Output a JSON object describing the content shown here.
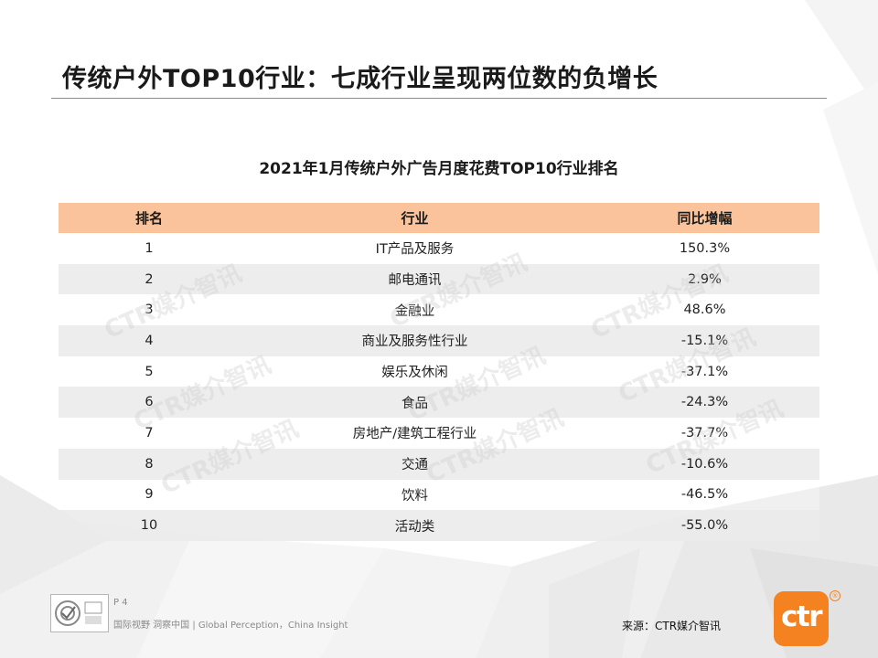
{
  "page_title": "传统户外TOP10行业：七成行业呈现两位数的负增长",
  "table_title": "2021年1月传统户外广告月度花费TOP10行业排名",
  "table": {
    "headers": [
      "排名",
      "行业",
      "同比增幅"
    ],
    "rows": [
      {
        "rank": "1",
        "industry": "IT产品及服务",
        "growth": "150.3%"
      },
      {
        "rank": "2",
        "industry": "邮电通讯",
        "growth": "2.9%"
      },
      {
        "rank": "3",
        "industry": "金融业",
        "growth": "48.6%"
      },
      {
        "rank": "4",
        "industry": "商业及服务性行业",
        "growth": "-15.1%"
      },
      {
        "rank": "5",
        "industry": "娱乐及休闲",
        "growth": "-37.1%"
      },
      {
        "rank": "6",
        "industry": "食品",
        "growth": "-24.3%"
      },
      {
        "rank": "7",
        "industry": "房地产/建筑工程行业",
        "growth": "-37.7%"
      },
      {
        "rank": "8",
        "industry": "交通",
        "growth": "-10.6%"
      },
      {
        "rank": "9",
        "industry": "饮料",
        "growth": "-46.5%"
      },
      {
        "rank": "10",
        "industry": "活动类",
        "growth": "-55.0%"
      }
    ]
  },
  "watermark_text": "CTR媒介智讯",
  "footer": {
    "page_label": "P 4",
    "slogan": "国际视野 洞察中国 | Global Perception，China Insight",
    "source": "来源：CTR媒介智讯",
    "logo_text": "ctr",
    "logo_reg": "®"
  },
  "colors": {
    "header_fill": "#fbc39b",
    "stripe_fill": "#ebebeb",
    "logo_orange": "#f58220"
  }
}
